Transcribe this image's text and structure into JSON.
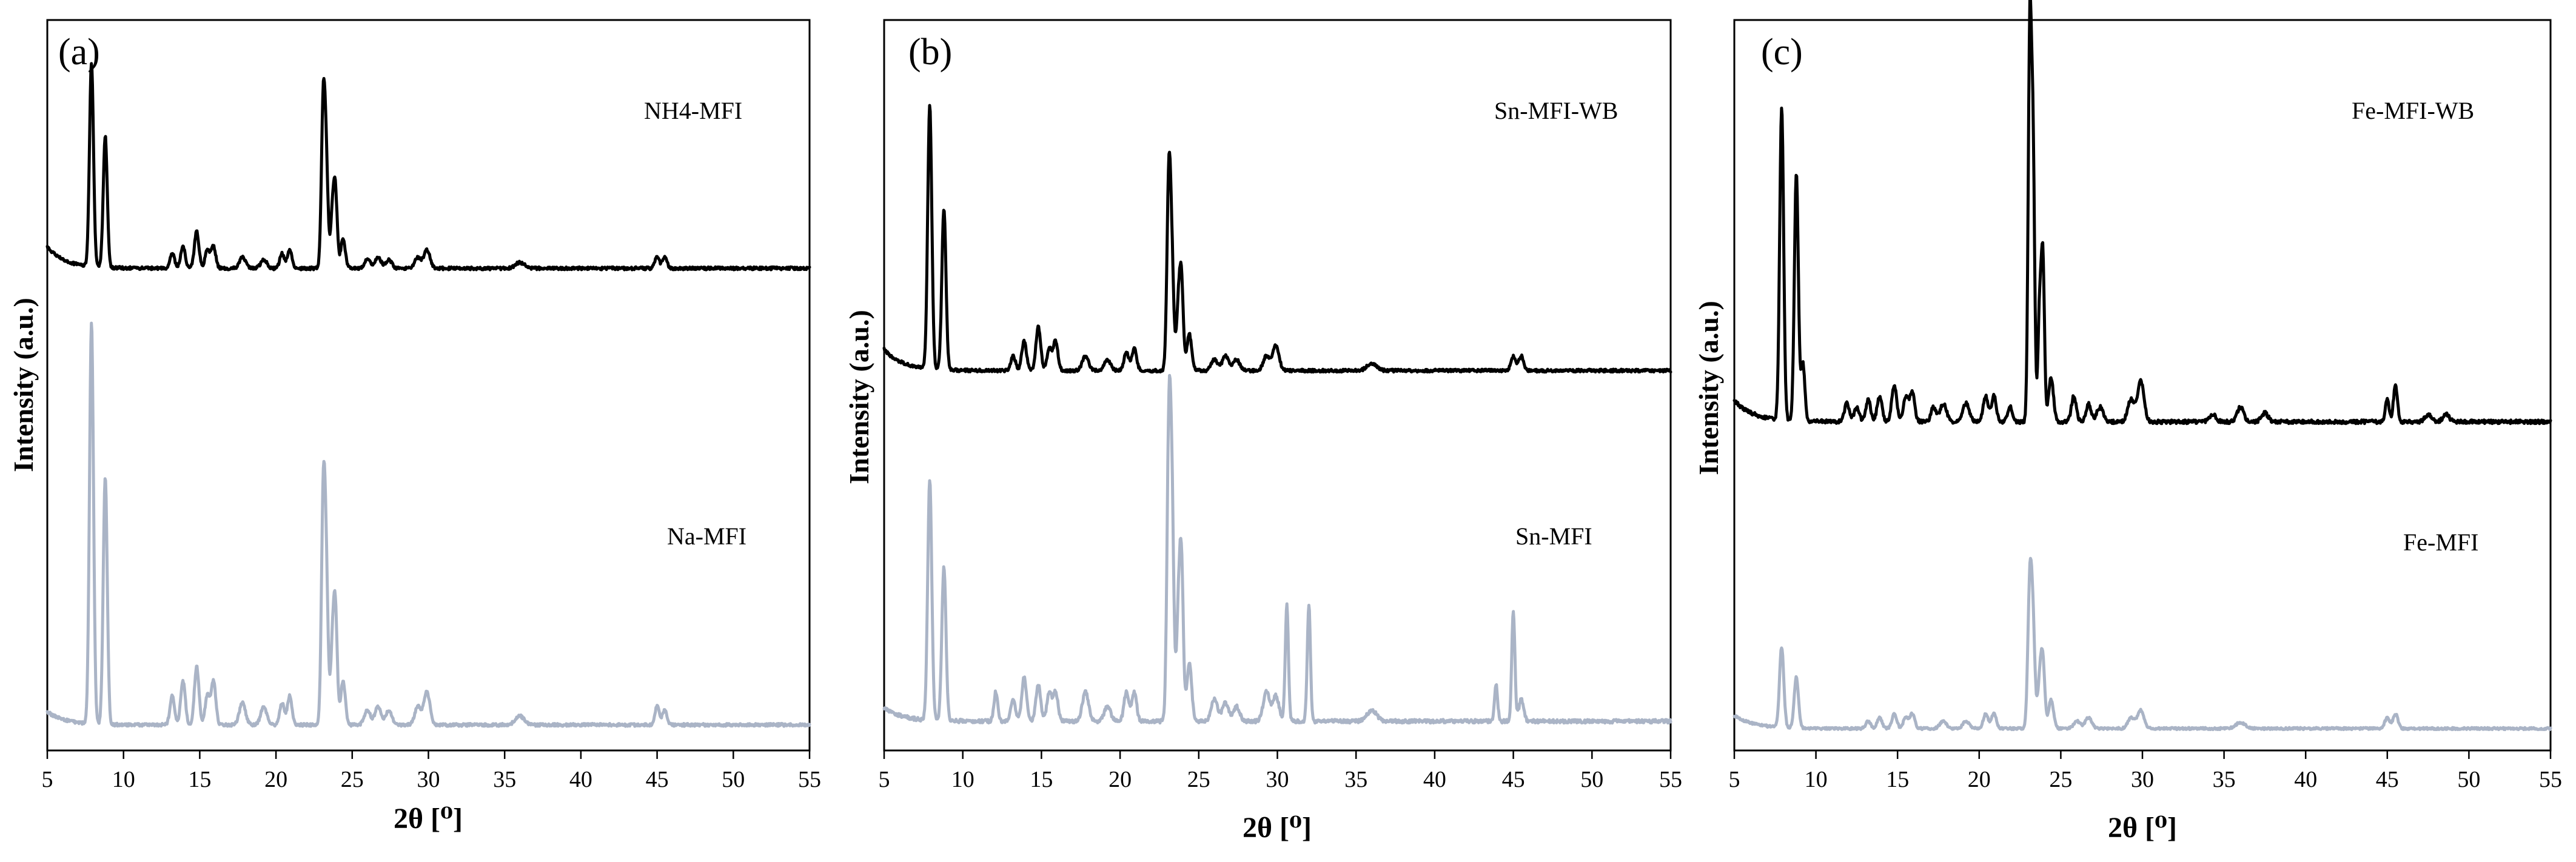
{
  "chart_data": [
    {
      "type": "line",
      "panel_label": "(a)",
      "xlabel": "2θ [⁰]",
      "ylabel": "Intensity (a.u.)",
      "xlim": [
        5,
        55
      ],
      "xticks": [
        5,
        10,
        15,
        20,
        25,
        30,
        35,
        40,
        45,
        50,
        55
      ],
      "y_ticks_shown": false,
      "series": [
        {
          "name": "NH4-MFI",
          "color": "#000000",
          "baseline": 0.66,
          "noise": 0.004,
          "peaks": [
            [
              7.9,
              0.28,
              0.13
            ],
            [
              8.8,
              0.18,
              0.13
            ],
            [
              13.2,
              0.02,
              0.15
            ],
            [
              13.9,
              0.03,
              0.15
            ],
            [
              14.8,
              0.05,
              0.15
            ],
            [
              15.5,
              0.025,
              0.15
            ],
            [
              15.9,
              0.03,
              0.15
            ],
            [
              17.8,
              0.015,
              0.2
            ],
            [
              19.2,
              0.012,
              0.2
            ],
            [
              20.4,
              0.02,
              0.15
            ],
            [
              20.9,
              0.025,
              0.15
            ],
            [
              23.1,
              0.22,
              0.12
            ],
            [
              23.3,
              0.13,
              0.12
            ],
            [
              23.7,
              0.07,
              0.12
            ],
            [
              23.9,
              0.1,
              0.12
            ],
            [
              24.4,
              0.04,
              0.15
            ],
            [
              26.0,
              0.012,
              0.2
            ],
            [
              26.7,
              0.015,
              0.2
            ],
            [
              27.4,
              0.012,
              0.2
            ],
            [
              29.3,
              0.015,
              0.2
            ],
            [
              29.9,
              0.025,
              0.2
            ],
            [
              36.0,
              0.008,
              0.3
            ],
            [
              45.0,
              0.015,
              0.15
            ],
            [
              45.5,
              0.015,
              0.15
            ]
          ]
        },
        {
          "name": "Na-MFI",
          "color": "#aab4c6",
          "baseline": 0.035,
          "noise": 0.004,
          "peaks": [
            [
              7.9,
              0.55,
              0.13
            ],
            [
              8.8,
              0.34,
              0.13
            ],
            [
              13.2,
              0.04,
              0.15
            ],
            [
              13.9,
              0.06,
              0.15
            ],
            [
              14.8,
              0.08,
              0.15
            ],
            [
              15.5,
              0.04,
              0.15
            ],
            [
              15.9,
              0.06,
              0.15
            ],
            [
              17.8,
              0.03,
              0.2
            ],
            [
              19.2,
              0.025,
              0.2
            ],
            [
              20.4,
              0.03,
              0.15
            ],
            [
              20.9,
              0.04,
              0.15
            ],
            [
              23.1,
              0.3,
              0.12
            ],
            [
              23.3,
              0.19,
              0.12
            ],
            [
              23.7,
              0.1,
              0.12
            ],
            [
              23.9,
              0.15,
              0.12
            ],
            [
              24.4,
              0.06,
              0.15
            ],
            [
              26.0,
              0.02,
              0.2
            ],
            [
              26.7,
              0.025,
              0.2
            ],
            [
              27.4,
              0.02,
              0.2
            ],
            [
              29.3,
              0.025,
              0.2
            ],
            [
              29.9,
              0.045,
              0.2
            ],
            [
              36.0,
              0.012,
              0.3
            ],
            [
              45.0,
              0.025,
              0.15
            ],
            [
              45.5,
              0.02,
              0.15
            ]
          ]
        }
      ]
    },
    {
      "type": "line",
      "panel_label": "(b)",
      "xlabel": "2θ [⁰]",
      "ylabel": "Intensity (a.u.)",
      "xlim": [
        5,
        55
      ],
      "xticks": [
        5,
        10,
        15,
        20,
        25,
        30,
        35,
        40,
        45,
        50,
        55
      ],
      "y_ticks_shown": false,
      "series": [
        {
          "name": "Sn-MFI-WB",
          "color": "#000000",
          "baseline": 0.52,
          "noise": 0.004,
          "peaks": [
            [
              7.9,
              0.36,
              0.13
            ],
            [
              8.8,
              0.22,
              0.13
            ],
            [
              13.2,
              0.02,
              0.15
            ],
            [
              13.9,
              0.04,
              0.15
            ],
            [
              14.8,
              0.06,
              0.15
            ],
            [
              15.5,
              0.03,
              0.15
            ],
            [
              15.9,
              0.04,
              0.15
            ],
            [
              17.8,
              0.02,
              0.2
            ],
            [
              19.2,
              0.015,
              0.2
            ],
            [
              20.4,
              0.025,
              0.15
            ],
            [
              20.9,
              0.03,
              0.15
            ],
            [
              23.1,
              0.26,
              0.12
            ],
            [
              23.3,
              0.13,
              0.12
            ],
            [
              23.7,
              0.08,
              0.12
            ],
            [
              23.9,
              0.12,
              0.12
            ],
            [
              24.4,
              0.05,
              0.15
            ],
            [
              26.0,
              0.015,
              0.2
            ],
            [
              26.7,
              0.02,
              0.2
            ],
            [
              27.4,
              0.015,
              0.2
            ],
            [
              29.3,
              0.02,
              0.2
            ],
            [
              29.9,
              0.035,
              0.2
            ],
            [
              36.0,
              0.01,
              0.3
            ],
            [
              45.0,
              0.02,
              0.15
            ],
            [
              45.5,
              0.02,
              0.15
            ]
          ]
        },
        {
          "name": "Sn-MFI",
          "color": "#aab4c6",
          "baseline": 0.04,
          "noise": 0.005,
          "peaks": [
            [
              7.9,
              0.33,
              0.13
            ],
            [
              8.8,
              0.21,
              0.13
            ],
            [
              12.1,
              0.04,
              0.12
            ],
            [
              13.2,
              0.03,
              0.15
            ],
            [
              13.9,
              0.06,
              0.15
            ],
            [
              14.8,
              0.05,
              0.15
            ],
            [
              15.5,
              0.04,
              0.15
            ],
            [
              15.9,
              0.04,
              0.15
            ],
            [
              17.8,
              0.04,
              0.2
            ],
            [
              19.2,
              0.02,
              0.2
            ],
            [
              20.4,
              0.04,
              0.15
            ],
            [
              20.9,
              0.04,
              0.15
            ],
            [
              23.1,
              0.38,
              0.12
            ],
            [
              23.3,
              0.27,
              0.12
            ],
            [
              23.7,
              0.13,
              0.12
            ],
            [
              23.9,
              0.21,
              0.12
            ],
            [
              24.4,
              0.08,
              0.15
            ],
            [
              26.0,
              0.03,
              0.2
            ],
            [
              26.7,
              0.025,
              0.2
            ],
            [
              27.4,
              0.02,
              0.2
            ],
            [
              29.3,
              0.04,
              0.2
            ],
            [
              29.9,
              0.035,
              0.2
            ],
            [
              30.6,
              0.16,
              0.1
            ],
            [
              32.0,
              0.16,
              0.1
            ],
            [
              36.0,
              0.015,
              0.3
            ],
            [
              43.9,
              0.05,
              0.1
            ],
            [
              45.0,
              0.15,
              0.1
            ],
            [
              45.5,
              0.03,
              0.15
            ]
          ]
        }
      ]
    },
    {
      "type": "line",
      "panel_label": "(c)",
      "xlabel": "2θ [⁰]",
      "ylabel": "Intensity (a.u.)",
      "xlim": [
        5,
        55
      ],
      "xticks": [
        5,
        10,
        15,
        20,
        25,
        30,
        35,
        40,
        45,
        50,
        55
      ],
      "y_ticks_shown": false,
      "series": [
        {
          "name": "Fe-MFI-WB",
          "color": "#000000",
          "baseline": 0.45,
          "noise": 0.005,
          "peaks": [
            [
              7.9,
              0.43,
              0.12
            ],
            [
              8.8,
              0.34,
              0.12
            ],
            [
              9.2,
              0.08,
              0.12
            ],
            [
              11.9,
              0.025,
              0.15
            ],
            [
              12.5,
              0.02,
              0.15
            ],
            [
              13.2,
              0.03,
              0.15
            ],
            [
              13.9,
              0.035,
              0.15
            ],
            [
              14.8,
              0.05,
              0.15
            ],
            [
              15.5,
              0.035,
              0.15
            ],
            [
              15.9,
              0.04,
              0.15
            ],
            [
              17.2,
              0.02,
              0.15
            ],
            [
              17.8,
              0.025,
              0.2
            ],
            [
              19.2,
              0.025,
              0.2
            ],
            [
              20.4,
              0.035,
              0.15
            ],
            [
              20.9,
              0.035,
              0.15
            ],
            [
              21.9,
              0.02,
              0.15
            ],
            [
              23.1,
              0.52,
              0.1
            ],
            [
              23.3,
              0.36,
              0.1
            ],
            [
              23.7,
              0.15,
              0.1
            ],
            [
              23.9,
              0.22,
              0.1
            ],
            [
              24.4,
              0.06,
              0.15
            ],
            [
              25.8,
              0.035,
              0.15
            ],
            [
              26.7,
              0.025,
              0.15
            ],
            [
              27.4,
              0.02,
              0.2
            ],
            [
              29.3,
              0.03,
              0.2
            ],
            [
              29.9,
              0.055,
              0.2
            ],
            [
              34.3,
              0.01,
              0.2
            ],
            [
              36.0,
              0.02,
              0.2
            ],
            [
              37.5,
              0.012,
              0.2
            ],
            [
              45.0,
              0.03,
              0.12
            ],
            [
              45.5,
              0.05,
              0.12
            ],
            [
              47.5,
              0.01,
              0.2
            ],
            [
              48.6,
              0.01,
              0.2
            ]
          ]
        },
        {
          "name": "Fe-MFI",
          "color": "#aab4c6",
          "baseline": 0.03,
          "noise": 0.003,
          "peaks": [
            [
              7.9,
              0.11,
              0.13
            ],
            [
              8.8,
              0.07,
              0.13
            ],
            [
              13.2,
              0.01,
              0.15
            ],
            [
              13.9,
              0.015,
              0.15
            ],
            [
              14.8,
              0.02,
              0.15
            ],
            [
              15.5,
              0.015,
              0.15
            ],
            [
              15.9,
              0.02,
              0.15
            ],
            [
              17.8,
              0.01,
              0.2
            ],
            [
              19.2,
              0.01,
              0.2
            ],
            [
              20.4,
              0.02,
              0.15
            ],
            [
              20.9,
              0.02,
              0.15
            ],
            [
              23.1,
              0.19,
              0.12
            ],
            [
              23.3,
              0.13,
              0.12
            ],
            [
              23.7,
              0.06,
              0.12
            ],
            [
              23.9,
              0.09,
              0.12
            ],
            [
              24.4,
              0.04,
              0.15
            ],
            [
              26.0,
              0.01,
              0.2
            ],
            [
              26.7,
              0.015,
              0.2
            ],
            [
              29.3,
              0.015,
              0.2
            ],
            [
              29.9,
              0.025,
              0.2
            ],
            [
              36.0,
              0.008,
              0.3
            ],
            [
              45.0,
              0.015,
              0.15
            ],
            [
              45.5,
              0.02,
              0.15
            ]
          ]
        }
      ]
    }
  ]
}
